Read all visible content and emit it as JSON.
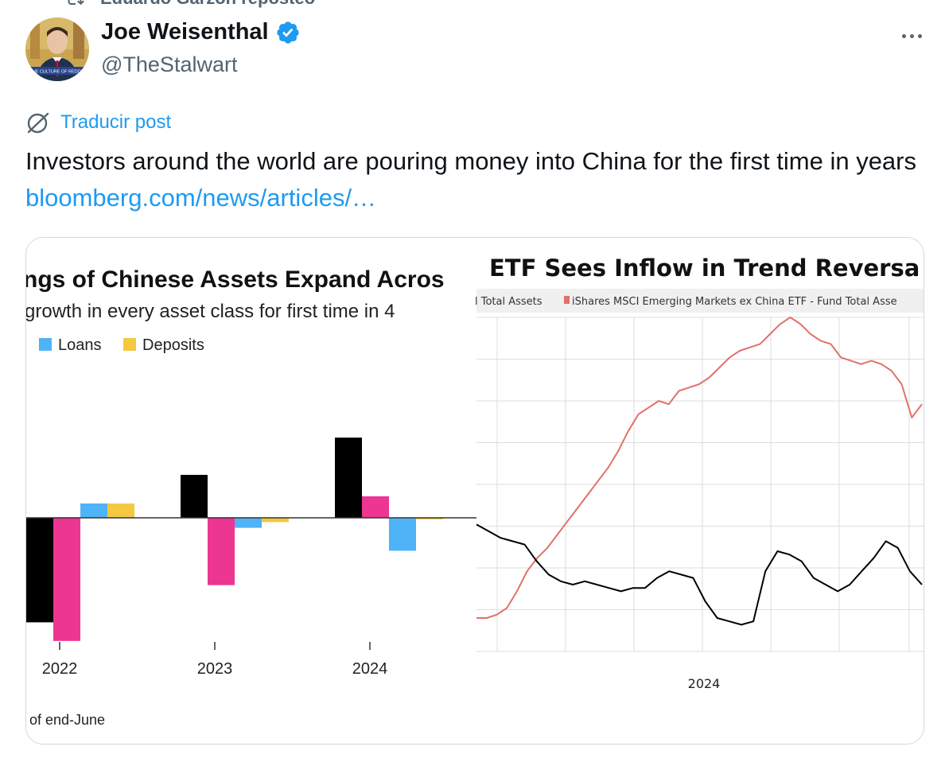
{
  "repost": {
    "text": "Eduardo Garzón reposteó",
    "icon": "repost-icon"
  },
  "author": {
    "name": "Joe Weisenthal",
    "handle": "@TheStalwart",
    "verified": true,
    "avatar_caption": "THE CULTURE OF REDDIT"
  },
  "post": {
    "translate_label": "Traducir post",
    "text": "Investors around the world are pouring money into China for the first time in years ",
    "link": "bloomberg.com/news/articles/…"
  },
  "colors": {
    "accent": "#1d9bf0",
    "secondary_text": "#536471",
    "verified_badge": "#1d9bf0"
  },
  "left_chart": {
    "title": "ngs of Chinese Assets Expand Acros",
    "subtitle": "growth in every asset class for first time in 4",
    "footnote": "of end-June",
    "chart_data": {
      "type": "bar",
      "categories": [
        "2022",
        "2023",
        "2024"
      ],
      "series": [
        {
          "name": "",
          "color": "#000000",
          "values": [
            -73,
            30,
            56
          ]
        },
        {
          "name": "",
          "color": "#ed3592",
          "values": [
            -86,
            -47,
            15
          ]
        },
        {
          "name": "Loans",
          "color": "#4fb3f7",
          "values": [
            10,
            -7,
            -23
          ]
        },
        {
          "name": "Deposits",
          "color": "#f5c842",
          "values": [
            10,
            -3,
            -1
          ]
        }
      ],
      "legend": [
        "Loans",
        "Deposits"
      ],
      "legend_position": "top-left",
      "grid": false
    }
  },
  "right_chart": {
    "title": "ETF Sees Inflow in Trend Reversa",
    "legend_left": "l Total Assets",
    "legend_right": "iShares MSCI Emerging Markets ex China ETF - Fund Total Asse",
    "x_label": "2024",
    "chart_data": {
      "type": "line",
      "x_tick_labels": [
        "2024"
      ],
      "grid": true,
      "series": [
        {
          "name": "iShares MSCI Emerging Markets ex China ETF - Fund Total Asse",
          "color": "#e0716b",
          "values": [
            0.1,
            0.1,
            0.11,
            0.13,
            0.18,
            0.24,
            0.28,
            0.31,
            0.35,
            0.39,
            0.43,
            0.47,
            0.51,
            0.55,
            0.6,
            0.66,
            0.71,
            0.73,
            0.75,
            0.74,
            0.78,
            0.79,
            0.8,
            0.82,
            0.85,
            0.88,
            0.9,
            0.91,
            0.92,
            0.95,
            0.98,
            1.0,
            0.98,
            0.95,
            0.93,
            0.92,
            0.88,
            0.87,
            0.86,
            0.87,
            0.86,
            0.84,
            0.8,
            0.7,
            0.74
          ]
        },
        {
          "name": "",
          "color": "#000000",
          "values": [
            0.38,
            0.36,
            0.34,
            0.33,
            0.32,
            0.27,
            0.23,
            0.21,
            0.2,
            0.21,
            0.2,
            0.19,
            0.18,
            0.19,
            0.19,
            0.22,
            0.24,
            0.23,
            0.22,
            0.15,
            0.1,
            0.09,
            0.08,
            0.09,
            0.24,
            0.3,
            0.29,
            0.27,
            0.22,
            0.2,
            0.18,
            0.2,
            0.24,
            0.28,
            0.33,
            0.31,
            0.24,
            0.2
          ]
        }
      ]
    }
  }
}
